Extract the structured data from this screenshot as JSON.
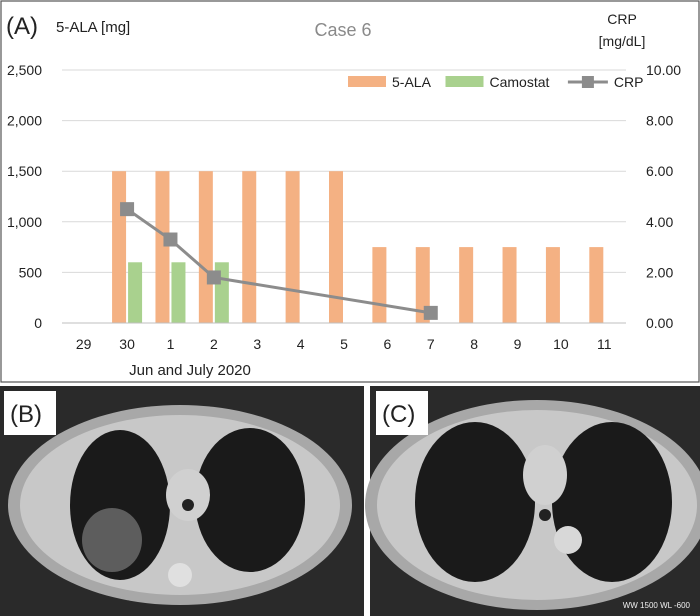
{
  "panels": {
    "a_label": "(A)",
    "b_label": "(B)",
    "c_label": "(C)",
    "ct_watermark": "WW 1500 WL -600"
  },
  "chart_data": {
    "type": "bar",
    "title": "Case 6",
    "ylabel_left": "5-ALA [mg]",
    "ylabel_right": "CRP [mg/dL]",
    "xlabel": "Jun and July 2020",
    "categories": [
      "29",
      "30",
      "1",
      "2",
      "3",
      "4",
      "5",
      "6",
      "7",
      "8",
      "9",
      "10",
      "11"
    ],
    "ylim_left": [
      0,
      2500
    ],
    "ylim_right": [
      0,
      10
    ],
    "yticks_left": [
      "0",
      "500",
      "1,000",
      "1,500",
      "2,000",
      "2,500"
    ],
    "yticks_right": [
      "0.00",
      "2.00",
      "4.00",
      "6.00",
      "8.00",
      "10.00"
    ],
    "legend_position": "top-right",
    "series": [
      {
        "name": "5-ALA",
        "kind": "bar",
        "axis": "left",
        "color": "#f4b183",
        "values": [
          0,
          1500,
          1500,
          1500,
          1500,
          1500,
          1500,
          750,
          750,
          750,
          750,
          750,
          750
        ]
      },
      {
        "name": "Camostat",
        "kind": "bar",
        "axis": "left",
        "color": "#a9d18e",
        "values": [
          0,
          600,
          600,
          600,
          0,
          0,
          0,
          0,
          0,
          0,
          0,
          0,
          0
        ]
      },
      {
        "name": "CRP",
        "kind": "line",
        "axis": "right",
        "color": "#8c8c8c",
        "values": [
          null,
          4.5,
          3.3,
          1.8,
          null,
          null,
          null,
          null,
          0.4,
          null,
          null,
          null,
          null
        ]
      }
    ]
  }
}
